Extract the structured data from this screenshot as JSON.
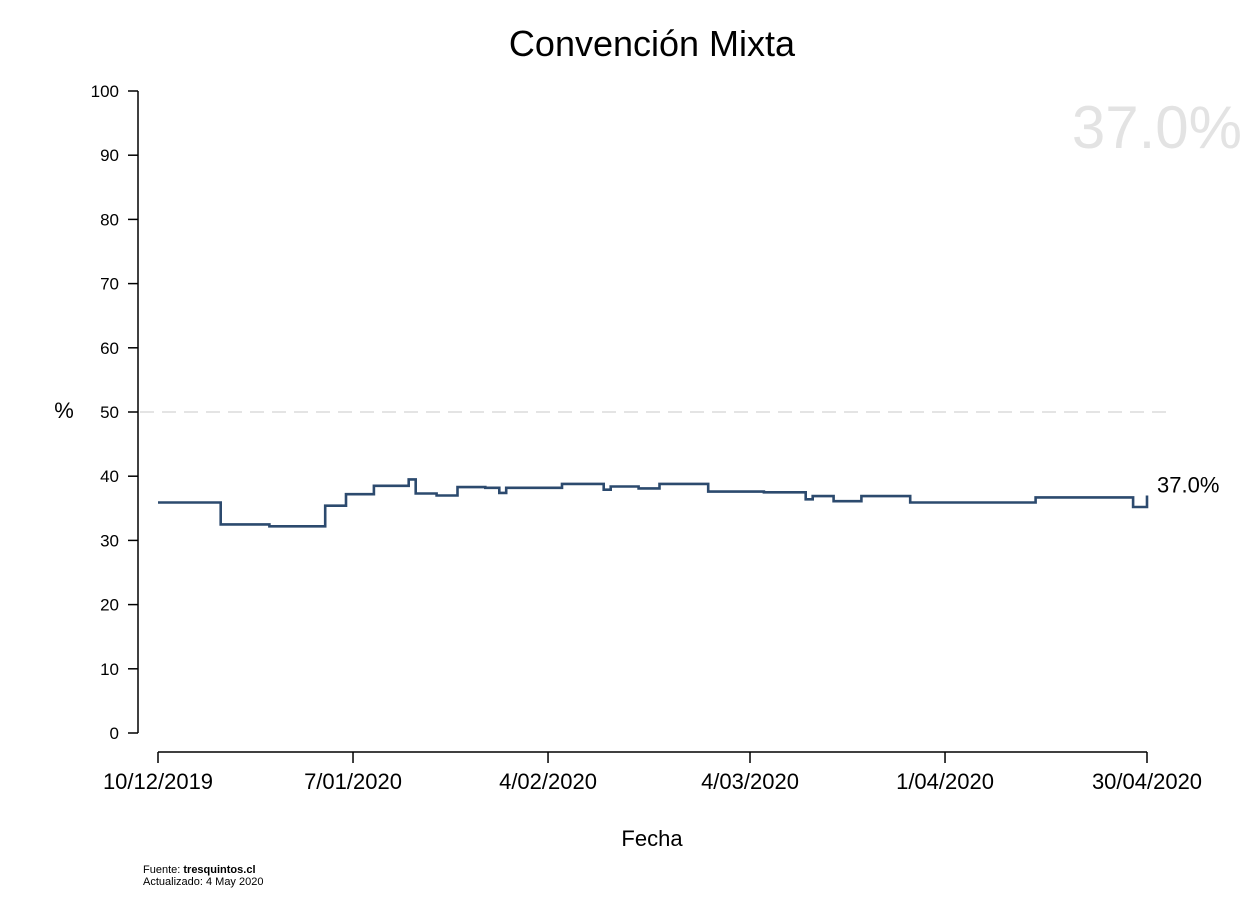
{
  "chart_data": {
    "type": "line",
    "step": true,
    "title": "Convención Mixta",
    "xlabel": "Fecha",
    "ylabel": "%",
    "ylim": [
      0,
      100
    ],
    "yticks": [
      0,
      10,
      20,
      30,
      40,
      50,
      60,
      70,
      80,
      90,
      100
    ],
    "xlim": [
      "2019-12-10",
      "2020-04-30"
    ],
    "xticks": [
      {
        "date": "2019-12-10",
        "label": "10/12/2019"
      },
      {
        "date": "2020-01-07",
        "label": "7/01/2020"
      },
      {
        "date": "2020-02-04",
        "label": "4/02/2020"
      },
      {
        "date": "2020-03-04",
        "label": "4/03/2020"
      },
      {
        "date": "2020-04-01",
        "label": "1/04/2020"
      },
      {
        "date": "2020-04-30",
        "label": "30/04/2020"
      }
    ],
    "reference_line": {
      "y": 50,
      "style": "dashed"
    },
    "series": [
      {
        "color": "#2c4a6e",
        "points": [
          [
            "2019-12-10",
            35.9
          ],
          [
            "2019-12-19",
            32.5
          ],
          [
            "2019-12-26",
            32.2
          ],
          [
            "2020-01-03",
            35.4
          ],
          [
            "2020-01-06",
            37.2
          ],
          [
            "2020-01-10",
            38.5
          ],
          [
            "2020-01-15",
            39.5
          ],
          [
            "2020-01-16",
            37.3
          ],
          [
            "2020-01-19",
            37.0
          ],
          [
            "2020-01-22",
            38.3
          ],
          [
            "2020-01-26",
            38.2
          ],
          [
            "2020-01-28",
            37.4
          ],
          [
            "2020-01-29",
            38.2
          ],
          [
            "2020-02-06",
            38.8
          ],
          [
            "2020-02-12",
            37.9
          ],
          [
            "2020-02-13",
            38.4
          ],
          [
            "2020-02-17",
            38.1
          ],
          [
            "2020-02-20",
            38.8
          ],
          [
            "2020-02-27",
            37.6
          ],
          [
            "2020-03-06",
            37.5
          ],
          [
            "2020-03-12",
            36.4
          ],
          [
            "2020-03-13",
            36.9
          ],
          [
            "2020-03-16",
            36.1
          ],
          [
            "2020-03-20",
            36.9
          ],
          [
            "2020-03-27",
            35.9
          ],
          [
            "2020-04-14",
            36.7
          ],
          [
            "2020-04-28",
            35.2
          ],
          [
            "2020-04-30",
            37.0
          ]
        ]
      }
    ],
    "end_label": "37.0%",
    "watermark": "37.0%",
    "grid": false
  },
  "footer": {
    "source_label": "Fuente:",
    "source": "tresquintos.cl",
    "updated": "Actualizado: 4 May 2020"
  }
}
